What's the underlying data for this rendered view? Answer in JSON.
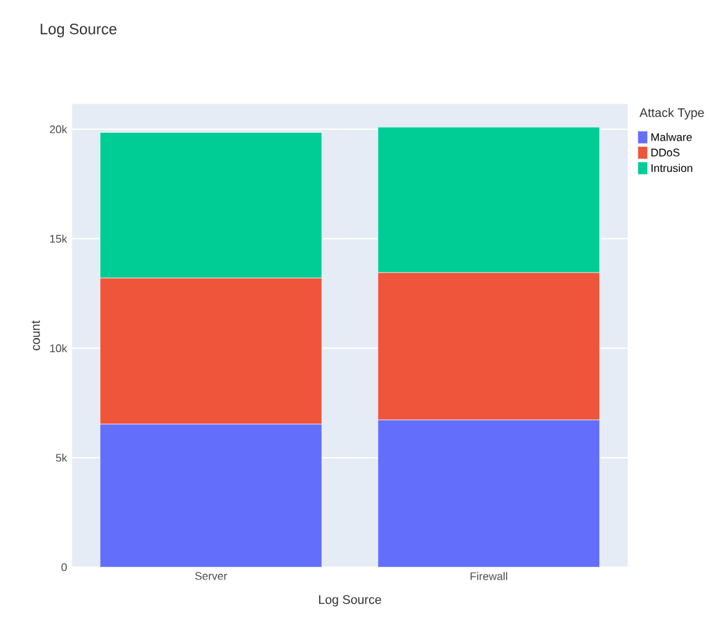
{
  "chart_data": {
    "type": "bar",
    "title": "Log Source",
    "xlabel": "Log Source",
    "ylabel": "count",
    "legend_title": "Attack Type",
    "categories": [
      "Server",
      "Firewall"
    ],
    "stacked": true,
    "series": [
      {
        "name": "Malware",
        "color": "#636efa",
        "values": [
          6530,
          6720
        ]
      },
      {
        "name": "DDoS",
        "color": "#ef553b",
        "values": [
          6670,
          6730
        ]
      },
      {
        "name": "Intrusion",
        "color": "#00cc96",
        "values": [
          6650,
          6640
        ]
      }
    ],
    "ylim": [
      0,
      21150
    ],
    "yticks": [
      {
        "value": 0,
        "label": "0"
      },
      {
        "value": 5000,
        "label": "5k"
      },
      {
        "value": 10000,
        "label": "10k"
      },
      {
        "value": 15000,
        "label": "15k"
      },
      {
        "value": 20000,
        "label": "20k"
      }
    ],
    "grid": "y",
    "legend": "top right"
  }
}
